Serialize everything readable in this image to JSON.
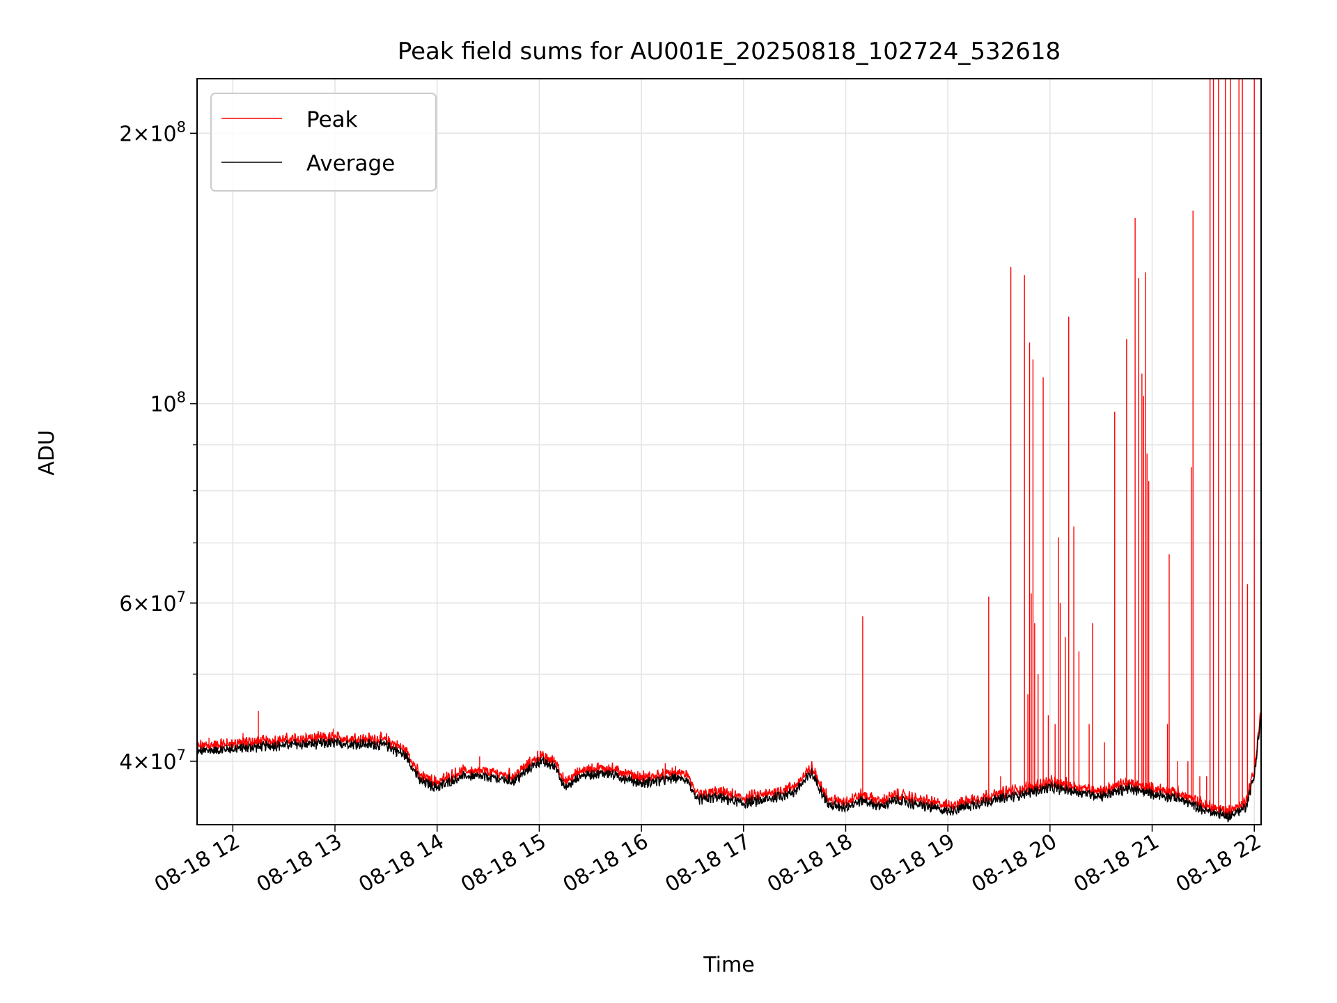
{
  "chart_data": {
    "type": "line",
    "title": "Peak field sums for AU001E_20250818_102724_532618",
    "xlabel": "Time",
    "ylabel": "ADU",
    "y_scale": "log",
    "ylim": [
      34000000,
      230000000
    ],
    "xlim": [
      "2025-08-18 11:39",
      "2025-08-18 22:04"
    ],
    "grid": true,
    "legend_position": "upper-left",
    "x_ticks": [
      {
        "t": "2025-08-18 12:00",
        "label": "08-18 12"
      },
      {
        "t": "2025-08-18 13:00",
        "label": "08-18 13"
      },
      {
        "t": "2025-08-18 14:00",
        "label": "08-18 14"
      },
      {
        "t": "2025-08-18 15:00",
        "label": "08-18 15"
      },
      {
        "t": "2025-08-18 16:00",
        "label": "08-18 16"
      },
      {
        "t": "2025-08-18 17:00",
        "label": "08-18 17"
      },
      {
        "t": "2025-08-18 18:00",
        "label": "08-18 18"
      },
      {
        "t": "2025-08-18 19:00",
        "label": "08-18 19"
      },
      {
        "t": "2025-08-18 20:00",
        "label": "08-18 20"
      },
      {
        "t": "2025-08-18 21:00",
        "label": "08-18 21"
      },
      {
        "t": "2025-08-18 22:00",
        "label": "08-18 22"
      }
    ],
    "y_ticks": [
      {
        "value": 40000000,
        "mant": "4",
        "exp": "7"
      },
      {
        "value": 60000000,
        "mant": "6",
        "exp": "7"
      },
      {
        "value": 100000000,
        "mant": "",
        "exp": "8"
      },
      {
        "value": 200000000,
        "mant": "2",
        "exp": "8"
      }
    ],
    "y_minor_ticks": [
      50000000,
      70000000,
      80000000,
      90000000
    ],
    "series": [
      {
        "name": "Peak",
        "color": "#ff0000",
        "spikes": [
          [
            "2025-08-18 11:46",
            42500000
          ],
          [
            "2025-08-18 12:06",
            43000000
          ],
          [
            "2025-08-18 12:15",
            45500000
          ],
          [
            "2025-08-18 12:59",
            43500000
          ],
          [
            "2025-08-18 13:15",
            42800000
          ],
          [
            "2025-08-18 14:25",
            40500000
          ],
          [
            "2025-08-18 16:14",
            39800000
          ],
          [
            "2025-08-18 18:10",
            58000000
          ],
          [
            "2025-08-18 19:24",
            61000000
          ],
          [
            "2025-08-18 19:31",
            38500000
          ],
          [
            "2025-08-18 19:37",
            142000000
          ],
          [
            "2025-08-18 19:45",
            139000000
          ],
          [
            "2025-08-18 19:47",
            47500000
          ],
          [
            "2025-08-18 19:48",
            117000000
          ],
          [
            "2025-08-18 19:49",
            61500000
          ],
          [
            "2025-08-18 19:50",
            112000000
          ],
          [
            "2025-08-18 19:51",
            57000000
          ],
          [
            "2025-08-18 19:53",
            50000000
          ],
          [
            "2025-08-18 19:56",
            107000000
          ],
          [
            "2025-08-18 19:59",
            45000000
          ],
          [
            "2025-08-18 20:03",
            44000000
          ],
          [
            "2025-08-18 20:05",
            71000000
          ],
          [
            "2025-08-18 20:06",
            60000000
          ],
          [
            "2025-08-18 20:09",
            55000000
          ],
          [
            "2025-08-18 20:11",
            125000000
          ],
          [
            "2025-08-18 20:14",
            73000000
          ],
          [
            "2025-08-18 20:17",
            53000000
          ],
          [
            "2025-08-18 20:23",
            44000000
          ],
          [
            "2025-08-18 20:25",
            57000000
          ],
          [
            "2025-08-18 20:32",
            42000000
          ],
          [
            "2025-08-18 20:38",
            98000000
          ],
          [
            "2025-08-18 20:45",
            118000000
          ],
          [
            "2025-08-18 20:50",
            161000000
          ],
          [
            "2025-08-18 20:52",
            138000000
          ],
          [
            "2025-08-18 20:54",
            108000000
          ],
          [
            "2025-08-18 20:55",
            102000000
          ],
          [
            "2025-08-18 20:56",
            140000000
          ],
          [
            "2025-08-18 20:57",
            88000000
          ],
          [
            "2025-08-18 20:58",
            82000000
          ],
          [
            "2025-08-18 21:09",
            44000000
          ],
          [
            "2025-08-18 21:10",
            68000000
          ],
          [
            "2025-08-18 21:15",
            40000000
          ],
          [
            "2025-08-18 21:21",
            40000000
          ],
          [
            "2025-08-18 21:23",
            85000000
          ],
          [
            "2025-08-18 21:24",
            164000000
          ],
          [
            "2025-08-18 21:28",
            38500000
          ],
          [
            "2025-08-18 21:32",
            38500000
          ],
          [
            "2025-08-18 21:34",
            230000000
          ],
          [
            "2025-08-18 21:36",
            230000000
          ],
          [
            "2025-08-18 21:39",
            230000000
          ],
          [
            "2025-08-18 21:43",
            230000000
          ],
          [
            "2025-08-18 21:46",
            230000000
          ],
          [
            "2025-08-18 21:51",
            230000000
          ],
          [
            "2025-08-18 21:53",
            230000000
          ],
          [
            "2025-08-18 21:56",
            63000000
          ],
          [
            "2025-08-18 22:00",
            230000000
          ]
        ]
      },
      {
        "name": "Average",
        "color": "#000000",
        "baseline": [
          [
            "2025-08-18 11:39",
            41000000
          ],
          [
            "2025-08-18 12:00",
            41300000
          ],
          [
            "2025-08-18 12:30",
            41700000
          ],
          [
            "2025-08-18 13:00",
            41900000
          ],
          [
            "2025-08-18 13:30",
            41700000
          ],
          [
            "2025-08-18 13:42",
            40500000
          ],
          [
            "2025-08-18 13:50",
            38000000
          ],
          [
            "2025-08-18 14:00",
            37400000
          ],
          [
            "2025-08-18 14:15",
            38500000
          ],
          [
            "2025-08-18 14:30",
            38400000
          ],
          [
            "2025-08-18 14:45",
            38000000
          ],
          [
            "2025-08-18 15:00",
            40000000
          ],
          [
            "2025-08-18 15:10",
            39400000
          ],
          [
            "2025-08-18 15:15",
            37300000
          ],
          [
            "2025-08-18 15:25",
            38600000
          ],
          [
            "2025-08-18 15:40",
            38800000
          ],
          [
            "2025-08-18 16:00",
            37800000
          ],
          [
            "2025-08-18 16:20",
            38300000
          ],
          [
            "2025-08-18 16:27",
            38200000
          ],
          [
            "2025-08-18 16:32",
            36200000
          ],
          [
            "2025-08-18 16:45",
            36500000
          ],
          [
            "2025-08-18 17:00",
            35900000
          ],
          [
            "2025-08-18 17:15",
            36300000
          ],
          [
            "2025-08-18 17:30",
            37000000
          ],
          [
            "2025-08-18 17:40",
            38800000
          ],
          [
            "2025-08-18 17:45",
            37300000
          ],
          [
            "2025-08-18 17:50",
            35700000
          ],
          [
            "2025-08-18 18:00",
            35600000
          ],
          [
            "2025-08-18 18:10",
            36200000
          ],
          [
            "2025-08-18 18:20",
            35600000
          ],
          [
            "2025-08-18 18:30",
            36200000
          ],
          [
            "2025-08-18 18:45",
            35700000
          ],
          [
            "2025-08-18 19:00",
            35200000
          ],
          [
            "2025-08-18 19:15",
            35800000
          ],
          [
            "2025-08-18 19:30",
            36300000
          ],
          [
            "2025-08-18 19:45",
            36800000
          ],
          [
            "2025-08-18 20:00",
            37400000
          ],
          [
            "2025-08-18 20:15",
            37000000
          ],
          [
            "2025-08-18 20:30",
            36600000
          ],
          [
            "2025-08-18 20:45",
            37300000
          ],
          [
            "2025-08-18 21:00",
            36800000
          ],
          [
            "2025-08-18 21:15",
            36400000
          ],
          [
            "2025-08-18 21:30",
            35300000
          ],
          [
            "2025-08-18 21:45",
            34700000
          ],
          [
            "2025-08-18 21:55",
            35600000
          ],
          [
            "2025-08-18 22:00",
            38500000
          ],
          [
            "2025-08-18 22:04",
            45000000
          ]
        ]
      }
    ]
  }
}
